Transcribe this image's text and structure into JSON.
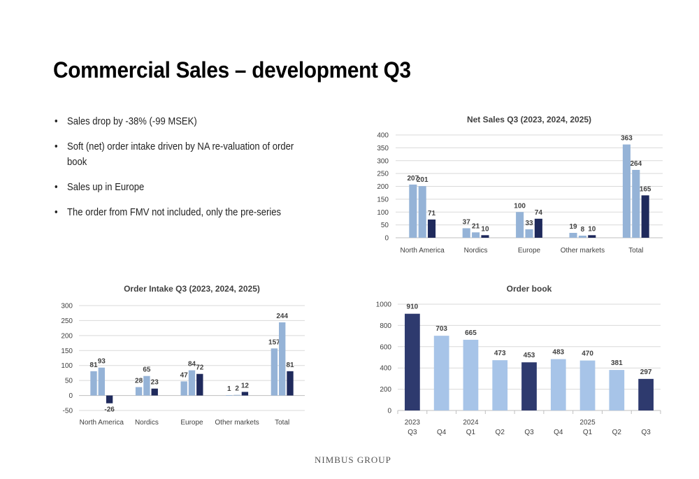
{
  "slide": {
    "title": "Commercial Sales – development Q3",
    "bullets": [
      "Sales drop by -38% (-99 MSEK)",
      "Soft (net) order intake driven by NA re-valuation of order book",
      "Sales up in Europe",
      "The order from FMV not included, only the pre-series"
    ],
    "footer": "NIMBUS GROUP"
  },
  "colors": {
    "series_2023": "#95b3d7",
    "series_2024": "#95b3d7",
    "series_2025": "#1f2a5c",
    "orderbook_light": "#a7c4e8",
    "orderbook_dark": "#2e3a6e"
  },
  "chart_data": [
    {
      "id": "net-sales",
      "type": "bar",
      "title": "Net Sales Q3 (2023, 2024, 2025)",
      "categories": [
        "North America",
        "Nordics",
        "Europe",
        "Other markets",
        "Total"
      ],
      "series": [
        {
          "name": "2023",
          "values": [
            207,
            37,
            100,
            19,
            363
          ]
        },
        {
          "name": "2024",
          "values": [
            201,
            21,
            33,
            8,
            264
          ]
        },
        {
          "name": "2025",
          "values": [
            71,
            10,
            74,
            10,
            165
          ]
        }
      ],
      "ylim": [
        0,
        400
      ],
      "yticks": [
        0,
        50,
        100,
        150,
        200,
        250,
        300,
        350,
        400
      ],
      "grid": true,
      "legend": "none"
    },
    {
      "id": "order-intake",
      "type": "bar",
      "title": "Order Intake Q3 (2023, 2024, 2025)",
      "categories": [
        "North America",
        "Nordics",
        "Europe",
        "Other markets",
        "Total"
      ],
      "series": [
        {
          "name": "2023",
          "values": [
            81,
            28,
            47,
            1,
            157
          ]
        },
        {
          "name": "2024",
          "values": [
            93,
            65,
            84,
            2,
            244
          ]
        },
        {
          "name": "2025",
          "values": [
            -26,
            23,
            72,
            12,
            81
          ]
        }
      ],
      "ylim": [
        -50,
        300
      ],
      "yticks": [
        -50,
        0,
        50,
        100,
        150,
        200,
        250,
        300
      ],
      "grid": true,
      "legend": "none"
    },
    {
      "id": "order-book",
      "type": "bar",
      "title": "Order book",
      "categories": [
        "Q3",
        "Q4",
        "Q1",
        "Q2",
        "Q3",
        "Q4",
        "Q1",
        "Q2",
        "Q3"
      ],
      "year_labels": [
        "2023",
        "",
        "2024",
        "",
        "",
        "",
        "2025",
        "",
        ""
      ],
      "values": [
        910,
        703,
        665,
        473,
        453,
        483,
        470,
        381,
        297
      ],
      "highlight": [
        true,
        false,
        false,
        false,
        true,
        false,
        false,
        false,
        true
      ],
      "ylim": [
        0,
        1000
      ],
      "yticks": [
        0,
        200,
        400,
        600,
        800,
        1000
      ],
      "grid": true,
      "legend": "none"
    }
  ]
}
